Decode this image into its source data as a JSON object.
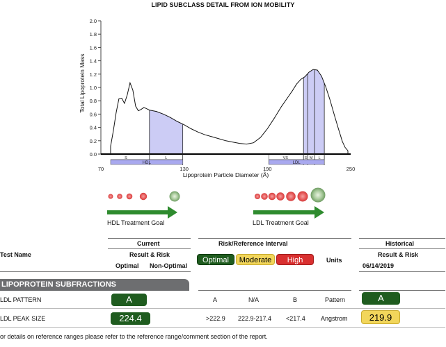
{
  "chart": {
    "title": "LIPID SUBCLASS DETAIL FROM ION MOBILITY",
    "ylabel": "Total Lipoprotein Mass",
    "xlabel": "Lipoprotein Particle Diameter (Å)",
    "yticks": [
      "2.0",
      "1.8",
      "1.6",
      "1.4",
      "1.2",
      "1.0",
      "0.8",
      "0.6",
      "0.4",
      "0.2",
      "0.0"
    ],
    "xticks": [
      "70",
      "130",
      "190",
      "250"
    ],
    "bands_top": [
      "S",
      "L",
      "VS",
      "S",
      "M",
      "L"
    ],
    "bands_bottom": [
      "HDL",
      "LDL"
    ]
  },
  "chart_data": {
    "type": "area",
    "title": "LIPID SUBCLASS DETAIL FROM ION MOBILITY",
    "xlabel": "Lipoprotein Particle Diameter (Å)",
    "ylabel": "Total Lipoprotein Mass",
    "xlim": [
      70,
      250
    ],
    "ylim": [
      0,
      2.0
    ],
    "x": [
      77,
      79,
      81,
      83,
      85,
      87,
      89,
      91,
      93,
      95,
      97,
      99,
      101,
      103,
      105,
      110,
      115,
      120,
      125,
      130,
      135,
      140,
      145,
      150,
      155,
      160,
      165,
      170,
      175,
      180,
      185,
      190,
      195,
      200,
      205,
      208,
      211,
      214,
      217,
      220,
      223,
      226,
      229,
      232,
      235,
      238,
      241,
      244,
      246,
      248
    ],
    "y": [
      0.12,
      0.35,
      0.62,
      0.83,
      0.84,
      0.76,
      0.89,
      1.07,
      0.96,
      0.72,
      0.65,
      0.67,
      0.7,
      0.68,
      0.66,
      0.64,
      0.6,
      0.55,
      0.49,
      0.44,
      0.38,
      0.33,
      0.29,
      0.26,
      0.23,
      0.2,
      0.18,
      0.16,
      0.15,
      0.17,
      0.25,
      0.38,
      0.54,
      0.71,
      0.86,
      0.95,
      1.05,
      1.12,
      1.16,
      1.23,
      1.27,
      1.26,
      1.17,
      1.01,
      0.82,
      0.6,
      0.39,
      0.19,
      0.1,
      0.05
    ]
  },
  "goals": {
    "hdl_label": "HDL Treatment Goal",
    "ldl_label": "LDL Treatment Goal"
  },
  "table": {
    "test_name_header": "Test Name",
    "current_header": "Current",
    "result_risk": "Result & Risk",
    "optimal": "Optimal",
    "non_optimal": "Non-Optimal",
    "risk_interval_header": "Risk/Reference Interval",
    "pill_optimal": "Optimal",
    "pill_moderate": "Moderate",
    "pill_high": "High",
    "units_header": "Units",
    "historical_header": "Historical",
    "historical_result_risk": "Result & Risk",
    "historical_date": "06/14/2019",
    "section_title": "LIPOPROTEIN SUBFRACTIONS",
    "rows": [
      {
        "name": "LDL PATTERN",
        "current": "A",
        "optimal": "A",
        "moderate": "N/A",
        "high": "B",
        "units": "Pattern",
        "historical": "A"
      },
      {
        "name": "LDL PEAK SIZE",
        "current": "224.4",
        "optimal": ">222.9",
        "moderate": "222.9-217.4",
        "high": "<217.4",
        "units": "Angstrom",
        "historical": "219.9"
      }
    ],
    "footnote": "or details on reference ranges please refer to the reference range/comment section of the report."
  },
  "colors": {
    "fill": "#ccccf5",
    "band": "#a9a9ef",
    "green": "#1f5c1f",
    "arrow_green": "#2e8b2e",
    "yellow": "#f2d65b",
    "red": "#d93030",
    "section_gray": "#6d6e70"
  }
}
